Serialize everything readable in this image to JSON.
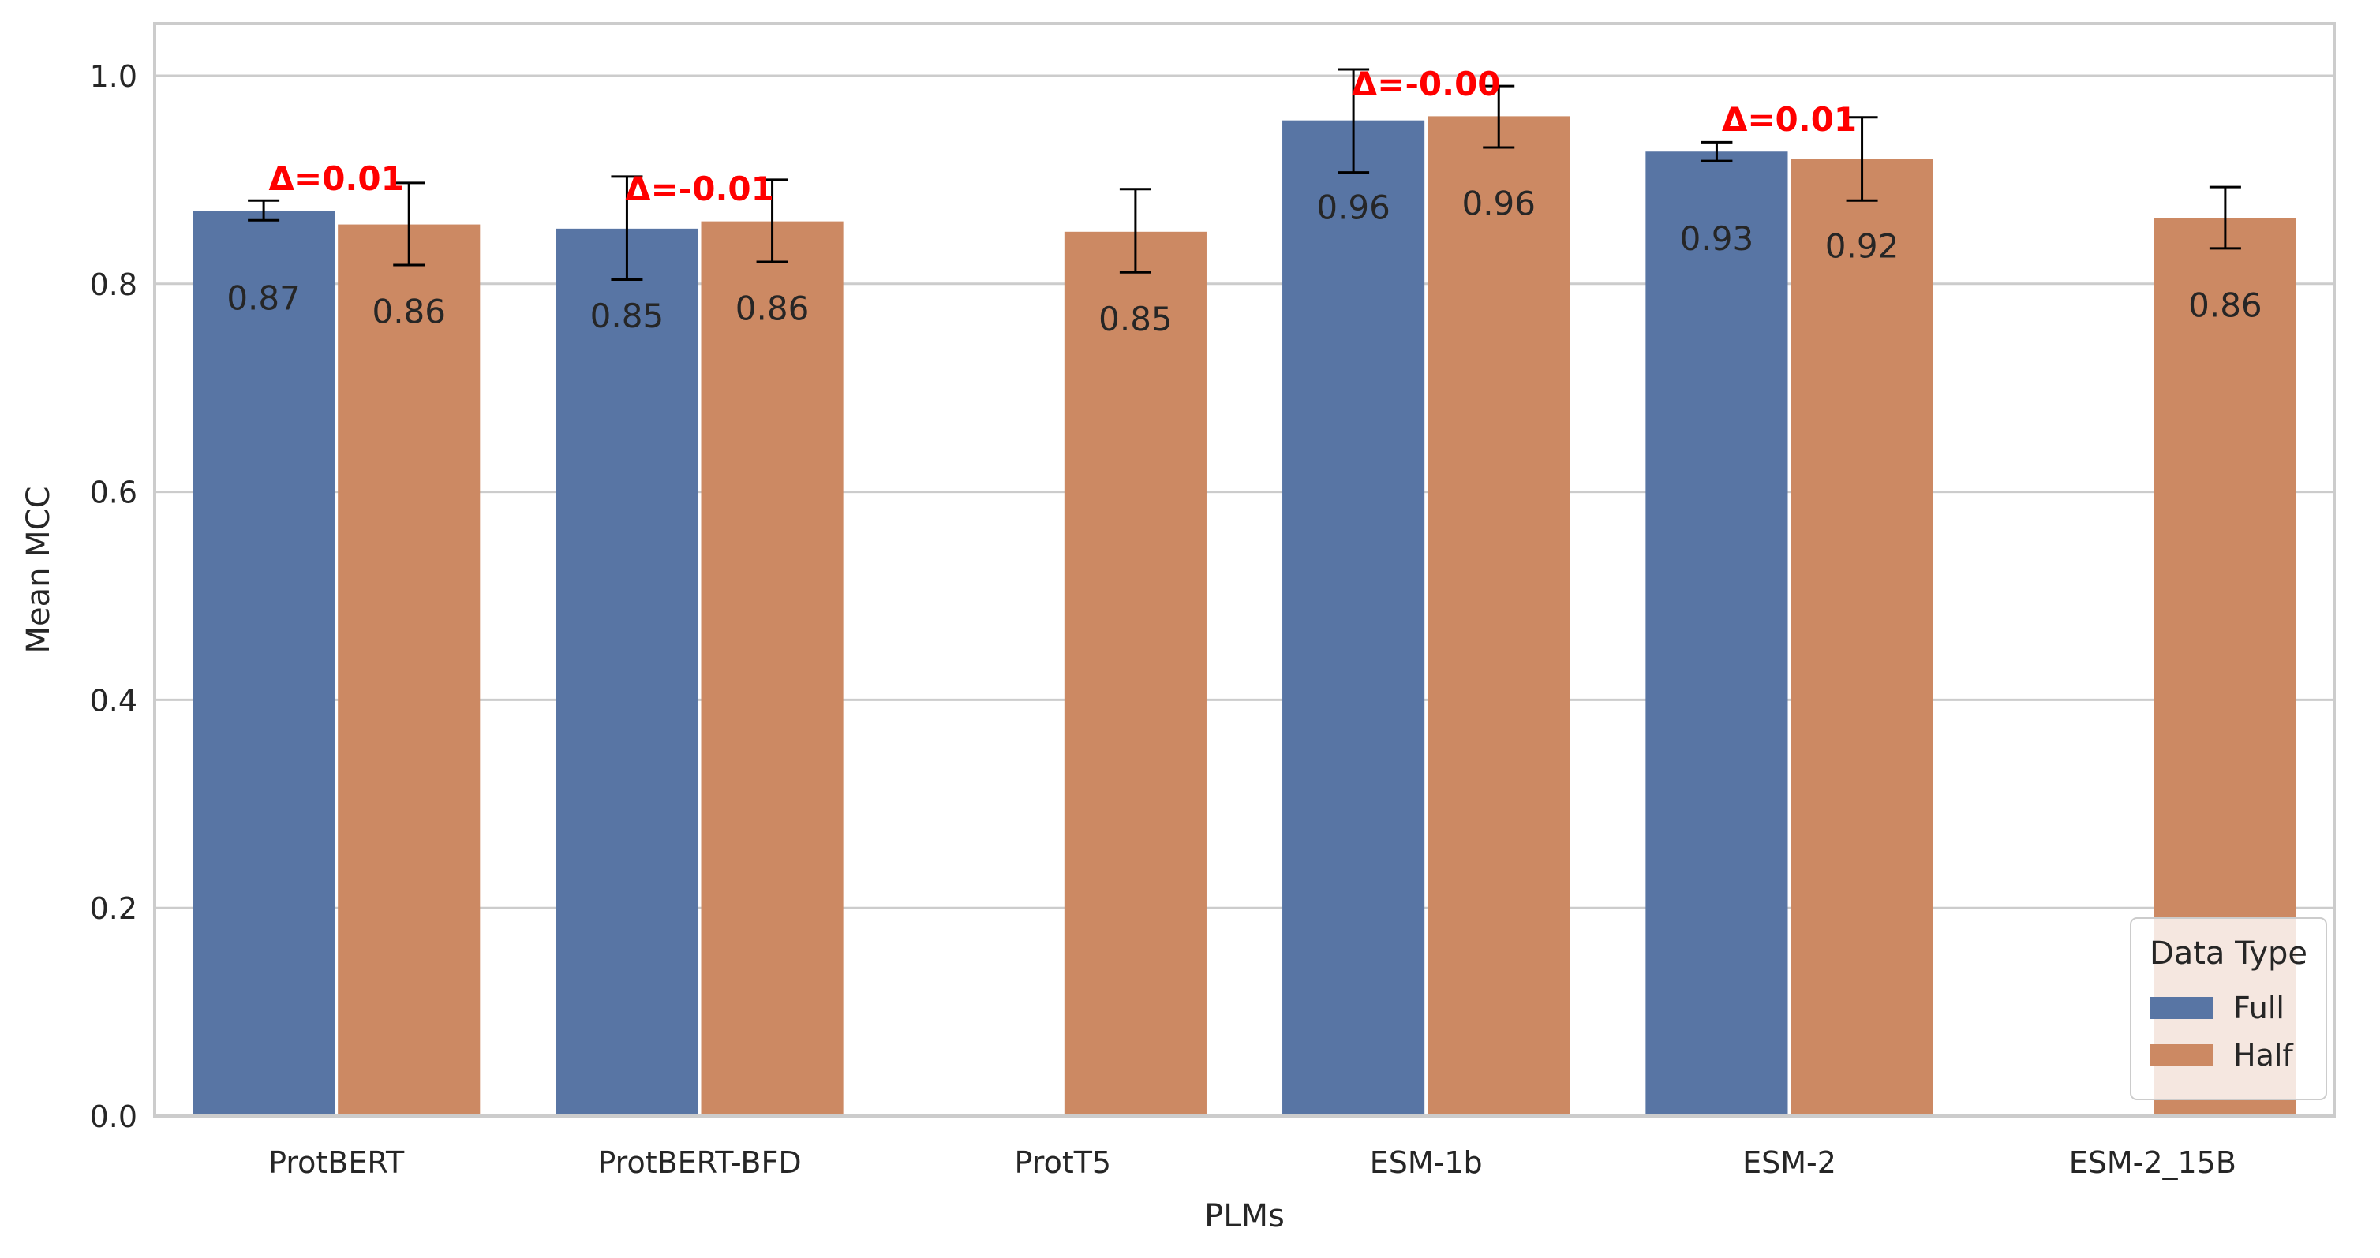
{
  "colors": {
    "full": "#5875a4",
    "half": "#cc8963",
    "grid": "#cccccc",
    "frame": "#cccccc",
    "delta": "#ff0000",
    "text": "#262626",
    "errorbar": "#000000"
  },
  "chart_data": {
    "type": "bar",
    "title": "",
    "xlabel": "PLMs",
    "ylabel": "Mean MCC",
    "ylim": [
      0,
      1.05
    ],
    "yticks": [
      "0.0",
      "0.2",
      "0.4",
      "0.6",
      "0.8",
      "1.0"
    ],
    "grid": "horizontal",
    "categories": [
      "ProtBERT",
      "ProtBERT-BFD",
      "ProtT5",
      "ESM-1b",
      "ESM-2",
      "ESM-2_15B"
    ],
    "legend": {
      "title": "Data Type",
      "placement": "lower-right",
      "entries": [
        "Full",
        "Half"
      ]
    },
    "series": [
      {
        "name": "Full",
        "color": "#5875a4",
        "values": [
          0.87,
          0.853,
          null,
          0.957,
          0.927,
          null
        ],
        "err_low": [
          0.861,
          0.804,
          null,
          0.907,
          0.918,
          null
        ],
        "err_high": [
          0.88,
          0.903,
          null,
          1.006,
          0.936,
          null
        ],
        "labels": [
          "0.87",
          "0.85",
          "",
          "0.96",
          "0.93",
          ""
        ]
      },
      {
        "name": "Half",
        "color": "#cc8963",
        "values": [
          0.857,
          0.86,
          0.85,
          0.961,
          0.92,
          0.863
        ],
        "err_low": [
          0.818,
          0.821,
          0.811,
          0.931,
          0.88,
          0.834
        ],
        "err_high": [
          0.897,
          0.9,
          0.891,
          0.99,
          0.96,
          0.893
        ],
        "labels": [
          "0.86",
          "0.86",
          "0.85",
          "0.96",
          "0.92",
          "0.86"
        ]
      }
    ],
    "delta_annotations": [
      "Δ=0.01",
      "Δ=-0.01",
      "",
      "Δ=-0.00",
      "Δ=0.01",
      ""
    ]
  }
}
